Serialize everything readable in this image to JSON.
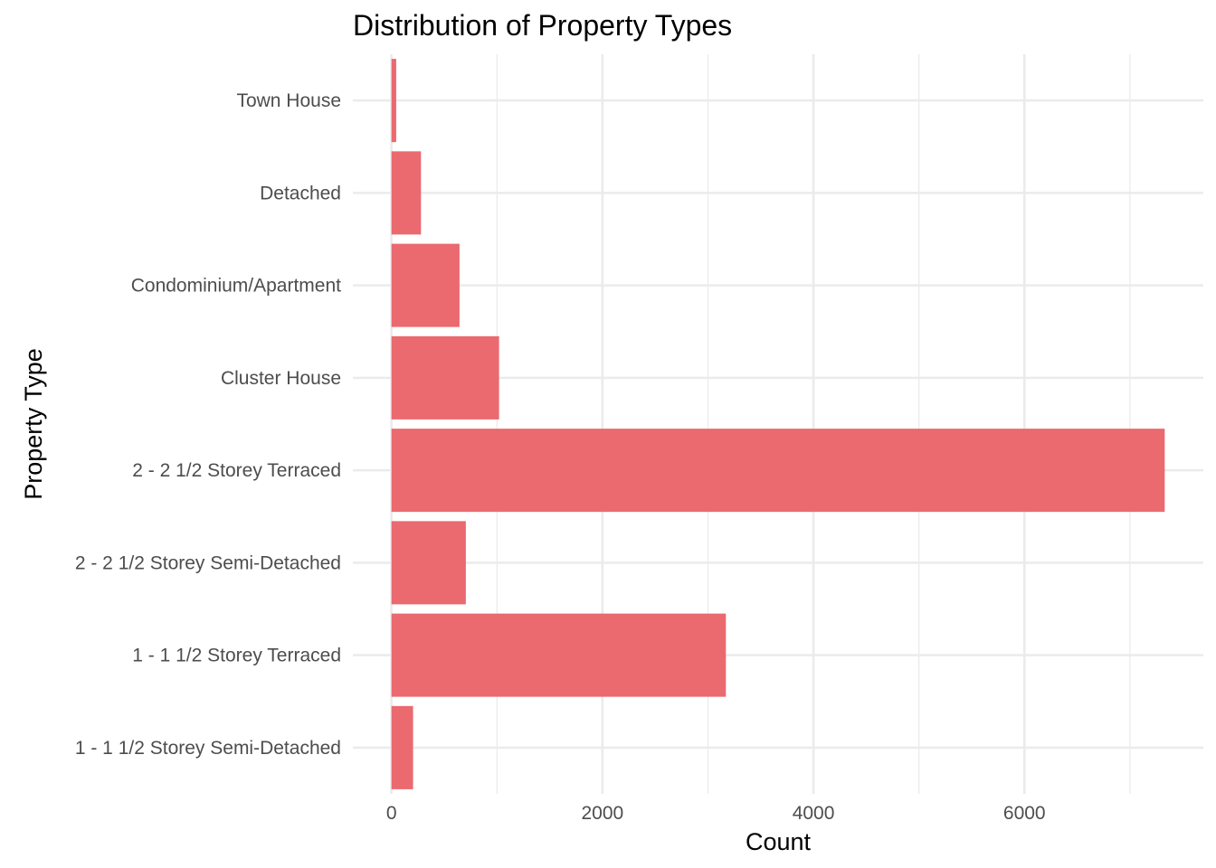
{
  "chart_data": {
    "type": "bar",
    "orientation": "horizontal",
    "title": "Distribution of Property Types",
    "xlabel": "Count",
    "ylabel": "Property Type",
    "categories": [
      "1 - 1 1/2 Storey Semi-Detached",
      "1 - 1 1/2 Storey Terraced",
      "2 - 2 1/2 Storey Semi-Detached",
      "2 - 2 1/2 Storey Terraced",
      "Cluster House",
      "Condominium/Apartment",
      "Detached",
      "Town House"
    ],
    "values": [
      205,
      3170,
      705,
      7330,
      1020,
      645,
      280,
      45
    ],
    "x_ticks": [
      0,
      2000,
      4000,
      6000
    ],
    "x_tick_labels": [
      "0",
      "2000",
      "4000",
      "6000"
    ],
    "xlim": [
      -366,
      7696
    ],
    "grid": true,
    "legend": "none",
    "bar_color": "#EA6A6F"
  }
}
